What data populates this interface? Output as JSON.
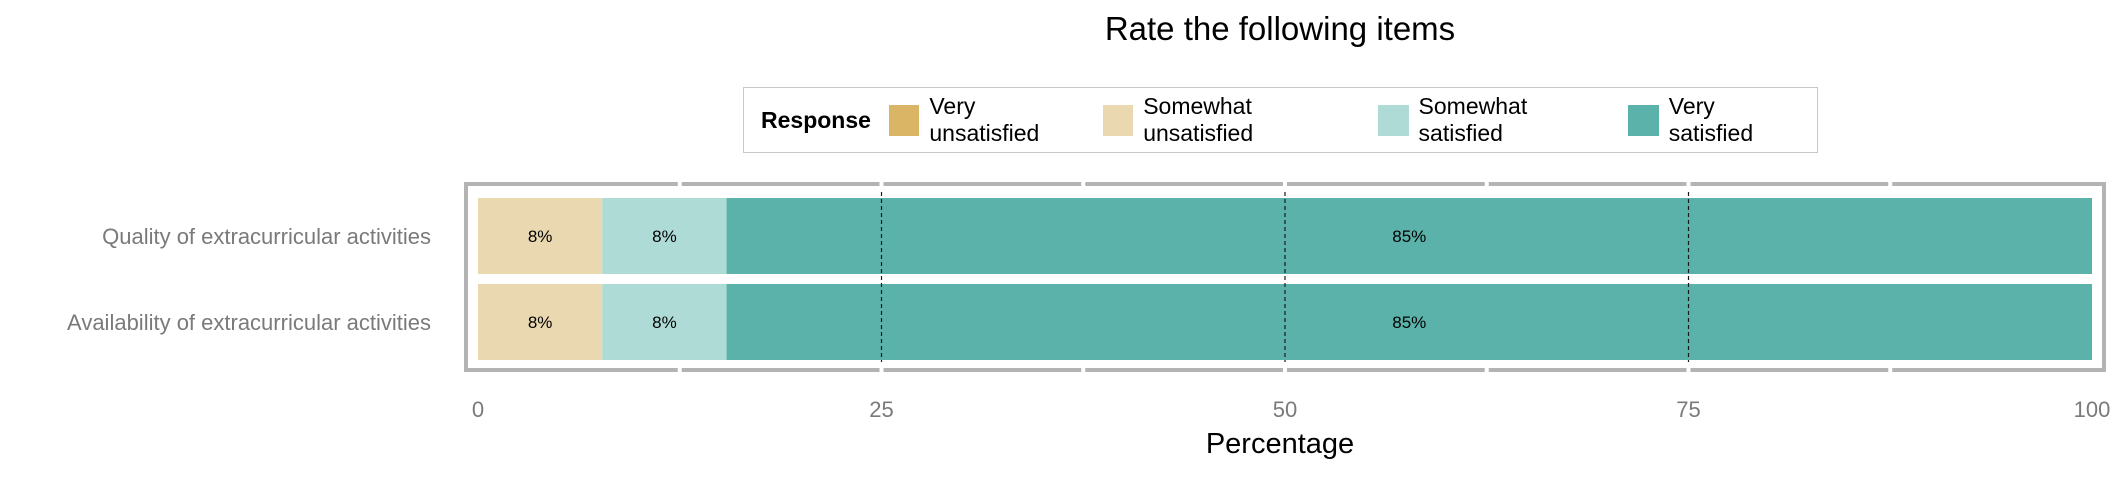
{
  "chart_data": {
    "type": "bar",
    "orientation": "horizontal",
    "stacked": true,
    "title": "Rate the following items",
    "xlabel": "Percentage",
    "ylabel": "",
    "xlim": [
      0,
      100
    ],
    "xticks": [
      "0",
      "25",
      "50",
      "75",
      "100"
    ],
    "legend_title": "Response",
    "legend_position": "top",
    "categories": [
      "Quality of extracurricular activities",
      "Availability of extracurricular activities"
    ],
    "series": [
      {
        "name": "Very unsatisfied",
        "color": "#D9B565",
        "values": [
          0,
          0
        ],
        "labels": [
          "",
          ""
        ]
      },
      {
        "name": "Somewhat unsatisfied",
        "color": "#EAD9B0",
        "values": [
          7.7,
          7.7
        ],
        "labels": [
          "8%",
          "8%"
        ]
      },
      {
        "name": "Somewhat satisfied",
        "color": "#AEDBD6",
        "values": [
          7.7,
          7.7
        ],
        "labels": [
          "8%",
          "8%"
        ]
      },
      {
        "name": "Very satisfied",
        "color": "#5AB2AA",
        "values": [
          84.6,
          84.6
        ],
        "labels": [
          "85%",
          "85%"
        ]
      }
    ],
    "reference_lines": [
      25,
      50,
      75
    ],
    "grid": true
  }
}
